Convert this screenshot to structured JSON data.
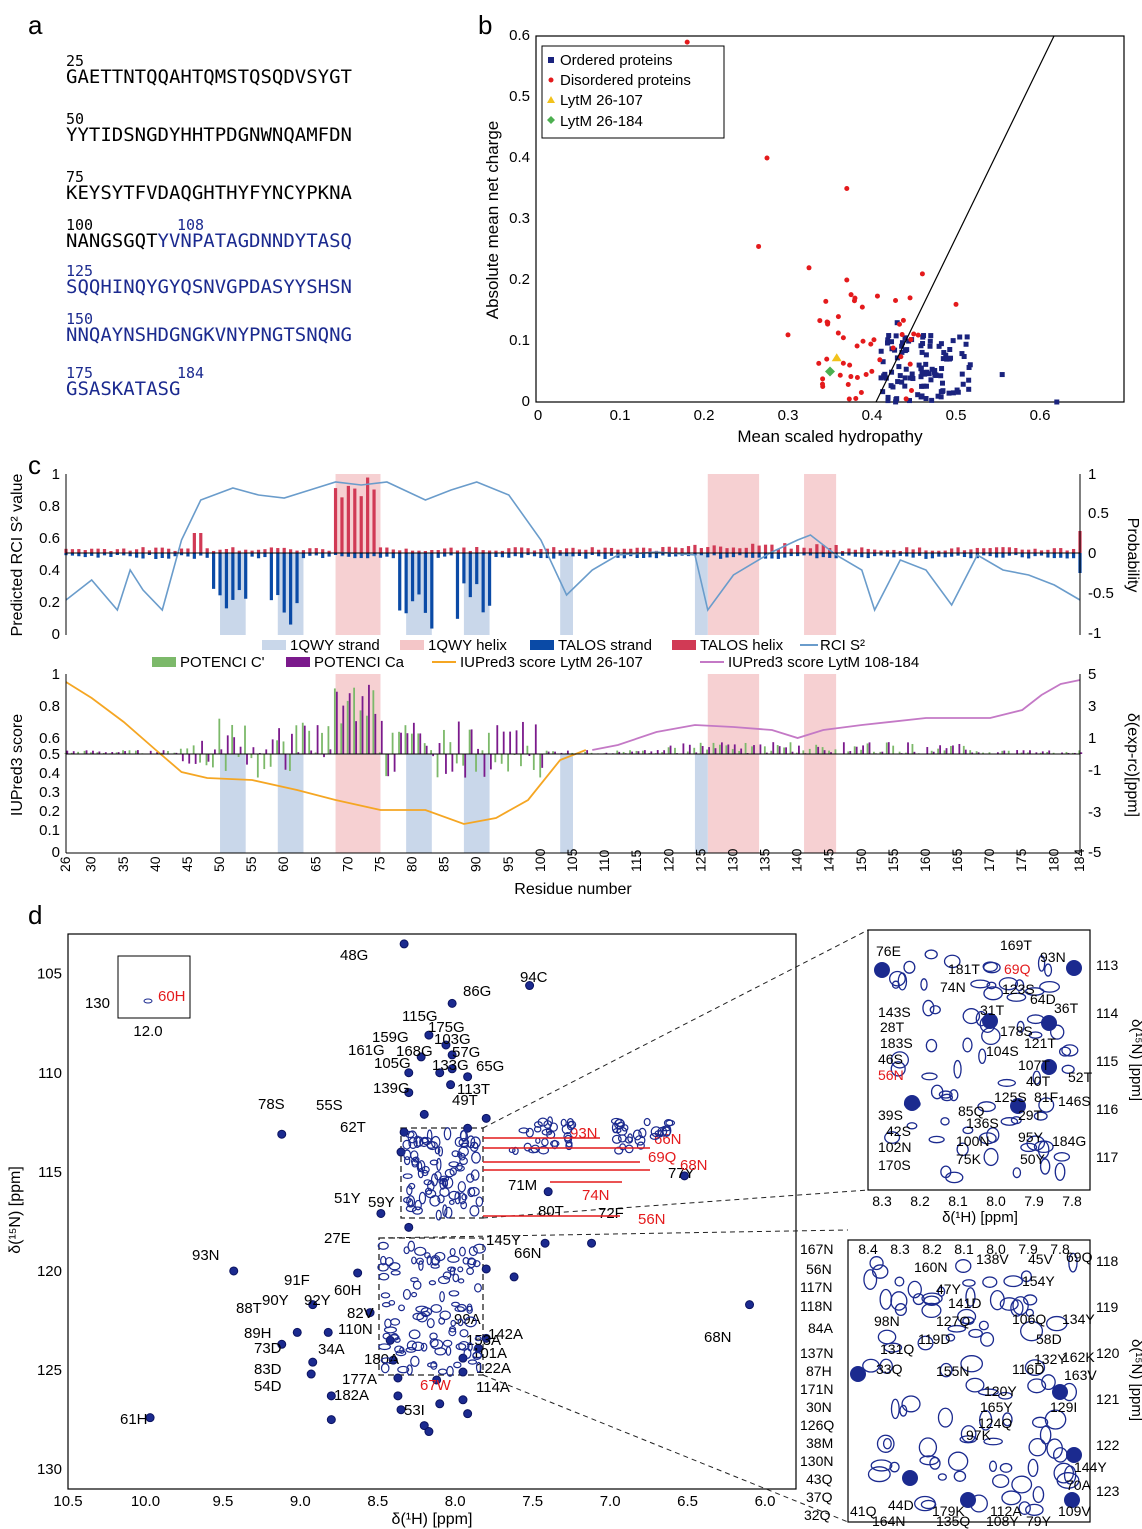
{
  "panels": {
    "a": "a",
    "b": "b",
    "c": "c",
    "d": "d"
  },
  "sequence": {
    "lines": [
      {
        "num": "25",
        "num2": "",
        "text": "GAETTNTQQAHTQMSTQSQDVSYGT",
        "text2": ""
      },
      {
        "num": "50",
        "num2": "",
        "text": "YYTIDSNGDYHHTPDGNWNQAMFDN",
        "text2": ""
      },
      {
        "num": "75",
        "num2": "",
        "text": "KEYSYTFVDAQGHTHYFYNCYPKNA",
        "text2": ""
      },
      {
        "num": "100",
        "num2": "108",
        "text": "NANGSGQT",
        "text2": "YVNPATAGDNNDYTASQ"
      },
      {
        "num": "125",
        "num2": "",
        "text": "",
        "text2": "SQQHINQYGYQSNVGPDASYYSHSN"
      },
      {
        "num": "150",
        "num2": "",
        "text": "",
        "text2": "NNQAYNSHDGNGKVNYPNGTSNQNG"
      },
      {
        "num": "175",
        "num2": "184",
        "text": "",
        "text2": "GSASKATASG"
      }
    ]
  },
  "panel_b": {
    "legend": [
      "Ordered proteins",
      "Disordered proteins",
      "LytM 26-107",
      "LytM 26-184"
    ],
    "colors": {
      "ordered": "#1a237e",
      "disordered": "#e41a1c",
      "lytm107": "#f2c21b",
      "lytm184": "#4caf50"
    },
    "xlabel": "Mean scaled hydropathy",
    "ylabel": "Absolute mean net charge",
    "xticks": [
      "0",
      "0.1",
      "0.2",
      "0.3",
      "0.4",
      "0.5",
      "0.6"
    ],
    "yticks": [
      "0",
      "0.1",
      "0.2",
      "0.3",
      "0.4",
      "0.5",
      "0.6"
    ]
  },
  "panel_c": {
    "top_legend": [
      "1QWY strand",
      "1QWY helix",
      "TALOS strand",
      "TALOS helix",
      "RCI S²"
    ],
    "bottom_legend": [
      "POTENCI C'",
      "POTENCI Ca",
      "IUPred3 score LytM 26-107",
      "IUPred3 score LytM 108-184"
    ],
    "top_ylabel_left": "Predicted RCI S² value",
    "top_ylabel_right": "Probability",
    "bottom_ylabel_left": "IUPred3 score",
    "bottom_ylabel_right": "δ(exp-rc)[ppm]",
    "xlabel": "Residue number",
    "top_left_ticks": [
      "1",
      "0.8",
      "0.6",
      "0.4",
      "0.2",
      "0"
    ],
    "top_right_ticks": [
      "1",
      "0.5",
      "0",
      "-0.5",
      "-1"
    ],
    "bottom_left_ticks": [
      "1",
      "0.8",
      "0.6",
      "0.5",
      "0.4",
      "0.3",
      "0.2",
      "0.1",
      "0"
    ],
    "bottom_right_ticks": [
      "5",
      "3",
      "1",
      "-1",
      "-3",
      "-5"
    ],
    "xticks": [
      "26",
      "30",
      "35",
      "40",
      "45",
      "50",
      "55",
      "60",
      "65",
      "70",
      "75",
      "80",
      "85",
      "90",
      "95",
      "100",
      "105",
      "110",
      "115",
      "120",
      "125",
      "130",
      "135",
      "140",
      "145",
      "150",
      "155",
      "160",
      "165",
      "170",
      "175",
      "180",
      "184"
    ]
  },
  "panel_d": {
    "xlabel": "δ(¹H) [ppm]",
    "ylabel": "δ(¹⁵N) [ppm]",
    "xticks": [
      "10.5",
      "10.0",
      "9.5",
      "9.0",
      "8.5",
      "8.0",
      "7.5",
      "7.0",
      "6.5",
      "6.0"
    ],
    "yticks": [
      "105",
      "110",
      "115",
      "120",
      "125",
      "130"
    ],
    "inset_label": "60H",
    "inset_y": "130",
    "inset_x": "12.0",
    "peaks_black": [
      "48G",
      "94C",
      "86G",
      "115G",
      "175G",
      "159G",
      "103G",
      "161G",
      "168G",
      "57G",
      "105G",
      "133G",
      "65G",
      "139G",
      "113T",
      "49T",
      "55S",
      "62T",
      "78S",
      "71M",
      "77Y",
      "51Y",
      "59Y",
      "80T",
      "72F",
      "27E",
      "145Y",
      "66N",
      "93N",
      "91F",
      "60H",
      "90Y",
      "92Y",
      "88T",
      "82V",
      "110N",
      "99A",
      "142A",
      "89H",
      "101A",
      "73D",
      "34A",
      "153A",
      "83D",
      "180A",
      "122A",
      "54D",
      "177A",
      "114A",
      "182A",
      "53I",
      "61H",
      "68N",
      "67W"
    ],
    "peaks_red": [
      "93N",
      "66N",
      "69Q",
      "68N",
      "74N",
      "56N",
      "67W"
    ],
    "zoom1_labels": [
      "169T",
      "181T",
      "93N",
      "76E",
      "69Q",
      "74N",
      "123S",
      "64D",
      "143S",
      "31T",
      "36T",
      "28T",
      "178S",
      "183S",
      "121T",
      "46S",
      "104S",
      "107T",
      "52T",
      "56N",
      "40T",
      "81F",
      "125S",
      "29T",
      "146S",
      "39S",
      "42S",
      "85Q",
      "102N",
      "136S",
      "100N",
      "95Y",
      "184G",
      "170S",
      "75K",
      "50Y"
    ],
    "zoom1_xticks": [
      "8.3",
      "8.2",
      "8.1",
      "8.0",
      "7.9",
      "7.8"
    ],
    "zoom1_yticks": [
      "113",
      "114",
      "115",
      "116",
      "117"
    ],
    "zoom2_labels": [
      "167N",
      "56N",
      "117N",
      "118N",
      "84A",
      "137N",
      "87H",
      "171N",
      "30N",
      "126Q",
      "38M",
      "130N",
      "43Q",
      "37Q",
      "32Q",
      "160N",
      "138V",
      "45V",
      "69Q",
      "47Y",
      "154Y",
      "141D",
      "98N",
      "127Q",
      "106Q",
      "134Y",
      "119D",
      "58D",
      "131Q",
      "132Y",
      "162K",
      "33Q",
      "155N",
      "116D",
      "163V",
      "120Y",
      "129I",
      "165Y",
      "124Q",
      "97K",
      "144Y",
      "70A",
      "41Q",
      "44D",
      "179K",
      "112A",
      "109V",
      "164N",
      "135Q",
      "108Y",
      "79Y"
    ],
    "zoom2_xticks": [
      "8.4",
      "8.3",
      "8.2",
      "8.1",
      "8.0",
      "7.9",
      "7.8"
    ],
    "zoom2_yticks": [
      "118",
      "119",
      "120",
      "121",
      "122",
      "123"
    ]
  }
}
